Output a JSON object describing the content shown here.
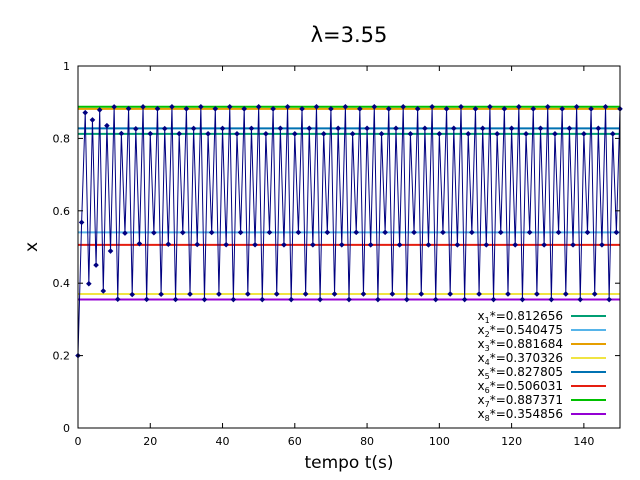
{
  "chart_data": {
    "type": "line",
    "title": "λ=3.55",
    "xlabel": "tempo t(s)",
    "ylabel": "x",
    "xlim": [
      0,
      150
    ],
    "ylim": [
      0,
      1
    ],
    "xticks": [
      0,
      20,
      40,
      60,
      80,
      100,
      120,
      140
    ],
    "yticks": [
      0,
      0.2,
      0.4,
      0.6,
      0.8,
      1
    ],
    "grid": false,
    "legend_position": "bottom-right",
    "trajectory": {
      "lambda": 3.55,
      "x0": 0.2,
      "t_start": 0,
      "t_end": 150,
      "color": "#000080",
      "marker": "diamond"
    },
    "fixed_points": [
      {
        "label": "x",
        "sub": "1",
        "sup": "*",
        "value_text": "=0.812656",
        "value": 0.812656,
        "color": "#009e73"
      },
      {
        "label": "x",
        "sub": "2",
        "sup": "*",
        "value_text": "=0.540475",
        "value": 0.540475,
        "color": "#56b4e9"
      },
      {
        "label": "x",
        "sub": "3",
        "sup": "*",
        "value_text": "=0.881684",
        "value": 0.881684,
        "color": "#e69f00"
      },
      {
        "label": "x",
        "sub": "4",
        "sup": "*",
        "value_text": "=0.370326",
        "value": 0.370326,
        "color": "#f0e442"
      },
      {
        "label": "x",
        "sub": "5",
        "sup": "*",
        "value_text": "=0.827805",
        "value": 0.827805,
        "color": "#0072b2"
      },
      {
        "label": "x",
        "sub": "6",
        "sup": "*",
        "value_text": "=0.506031",
        "value": 0.506031,
        "color": "#e51e10"
      },
      {
        "label": "x",
        "sub": "7",
        "sup": "*",
        "value_text": "=0.887371",
        "value": 0.887371,
        "color": "#00c000"
      },
      {
        "label": "x",
        "sub": "8",
        "sup": "*",
        "value_text": "=0.354856",
        "value": 0.354856,
        "color": "#9400d3"
      }
    ]
  }
}
